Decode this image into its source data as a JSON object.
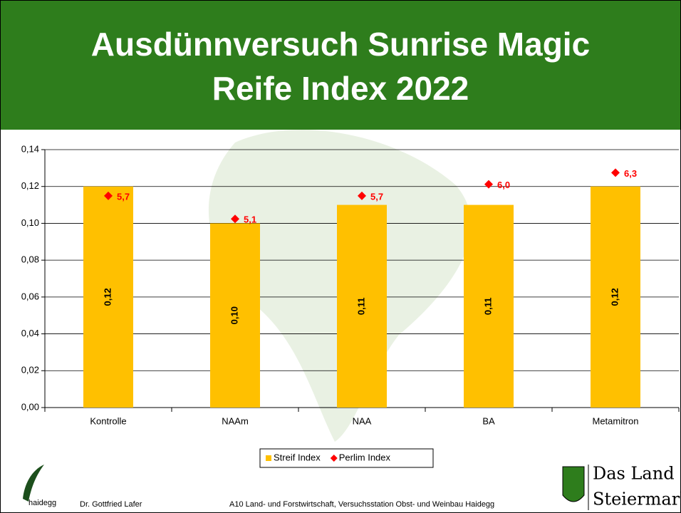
{
  "header": {
    "title_lines": [
      "Ausdünnversuch Sunrise Magic",
      "Reife Index 2022"
    ]
  },
  "chart_data": {
    "type": "bar",
    "categories": [
      "Kontrolle",
      "NAAm",
      "NAA",
      "BA",
      "Metamitron"
    ],
    "series": [
      {
        "name": "Streif Index",
        "type": "bar",
        "color": "#ffc000",
        "values": [
          0.12,
          0.1,
          0.11,
          0.11,
          0.12
        ],
        "value_labels": [
          "0,12",
          "0,10",
          "0,11",
          "0,11",
          "0,12"
        ]
      },
      {
        "name": "Perlim Index",
        "type": "scatter",
        "axis": "y2",
        "color": "#ff0000",
        "values": [
          5.7,
          5.1,
          5.7,
          6.0,
          6.3
        ],
        "value_labels": [
          "5,7",
          "5,1",
          "5,7",
          "6,0",
          "6,3"
        ]
      }
    ],
    "ylim": [
      0,
      0.14
    ],
    "yticks": [
      {
        "value": 0,
        "label": "0,00"
      },
      {
        "value": 0.02,
        "label": "0,02"
      },
      {
        "value": 0.04,
        "label": "0,04"
      },
      {
        "value": 0.06,
        "label": "0,06"
      },
      {
        "value": 0.08,
        "label": "0,08"
      },
      {
        "value": 0.1,
        "label": "0,10"
      },
      {
        "value": 0.12,
        "label": "0,12"
      },
      {
        "value": 0.14,
        "label": "0,14"
      }
    ],
    "y2lim": [
      0.2,
      6.9
    ],
    "grid": true,
    "legend": "bottom"
  },
  "footer": {
    "logo_text": "haidegg",
    "author": "Dr. Gottfried Lafer",
    "institution": "A10 Land- und Forstwirtschaft, Versuchsstation Obst- und Weinbau Haidegg",
    "brand_line1": "Das Land",
    "brand_line2": "Steiermark"
  }
}
